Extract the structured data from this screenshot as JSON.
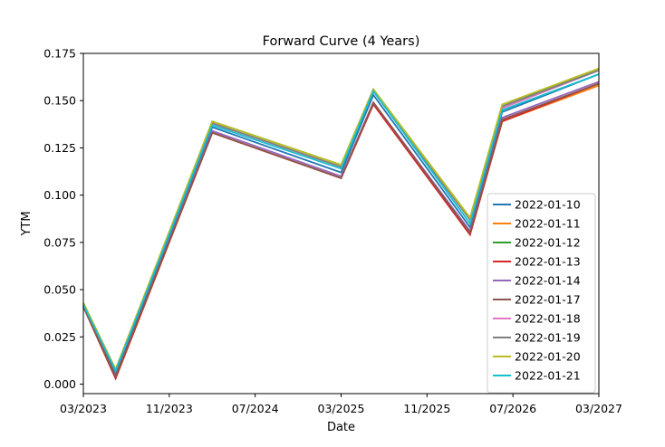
{
  "chart_data": {
    "type": "line",
    "title": "Forward Curve (4 Years)",
    "xlabel": "Date",
    "ylabel": "YTM",
    "x": [
      "03/2023",
      "06/2023",
      "03/2024",
      "03/2025",
      "06/2025",
      "03/2026",
      "06/2026",
      "03/2027"
    ],
    "xlim": [
      "03/2023",
      "03/2027"
    ],
    "xticks": [
      "03/2023",
      "11/2023",
      "07/2024",
      "03/2025",
      "11/2025",
      "07/2026",
      "03/2027"
    ],
    "ylim": [
      -0.005,
      0.175
    ],
    "yticks": [
      "0.000",
      "0.025",
      "0.050",
      "0.075",
      "0.100",
      "0.125",
      "0.150",
      "0.175"
    ],
    "legend_position": "lower right",
    "grid": false,
    "series": [
      {
        "name": "2022-01-10",
        "color": "#1f77b4",
        "values": [
          0.042,
          0.006,
          0.136,
          0.112,
          0.153,
          0.083,
          0.144,
          0.164
        ]
      },
      {
        "name": "2022-01-11",
        "color": "#ff7f0e",
        "values": [
          0.041,
          0.003,
          0.133,
          0.109,
          0.149,
          0.08,
          0.139,
          0.158
        ]
      },
      {
        "name": "2022-01-12",
        "color": "#2ca02c",
        "values": [
          0.043,
          0.007,
          0.139,
          0.116,
          0.156,
          0.088,
          0.147,
          0.167
        ]
      },
      {
        "name": "2022-01-13",
        "color": "#d62728",
        "values": [
          0.041,
          0.003,
          0.133,
          0.109,
          0.148,
          0.079,
          0.139,
          0.159
        ]
      },
      {
        "name": "2022-01-14",
        "color": "#9467bd",
        "values": [
          0.041,
          0.004,
          0.134,
          0.11,
          0.149,
          0.081,
          0.141,
          0.16
        ]
      },
      {
        "name": "2022-01-17",
        "color": "#8c564b",
        "values": [
          0.041,
          0.004,
          0.133,
          0.109,
          0.149,
          0.08,
          0.14,
          0.159
        ]
      },
      {
        "name": "2022-01-18",
        "color": "#e377c2",
        "values": [
          0.043,
          0.007,
          0.138,
          0.115,
          0.155,
          0.087,
          0.146,
          0.166
        ]
      },
      {
        "name": "2022-01-19",
        "color": "#7f7f7f",
        "values": [
          0.043,
          0.007,
          0.138,
          0.115,
          0.155,
          0.087,
          0.147,
          0.166
        ]
      },
      {
        "name": "2022-01-20",
        "color": "#bcbd22",
        "values": [
          0.043,
          0.008,
          0.139,
          0.116,
          0.156,
          0.088,
          0.148,
          0.167
        ]
      },
      {
        "name": "2022-01-21",
        "color": "#17becf",
        "values": [
          0.042,
          0.007,
          0.137,
          0.114,
          0.155,
          0.085,
          0.145,
          0.164
        ]
      }
    ]
  }
}
